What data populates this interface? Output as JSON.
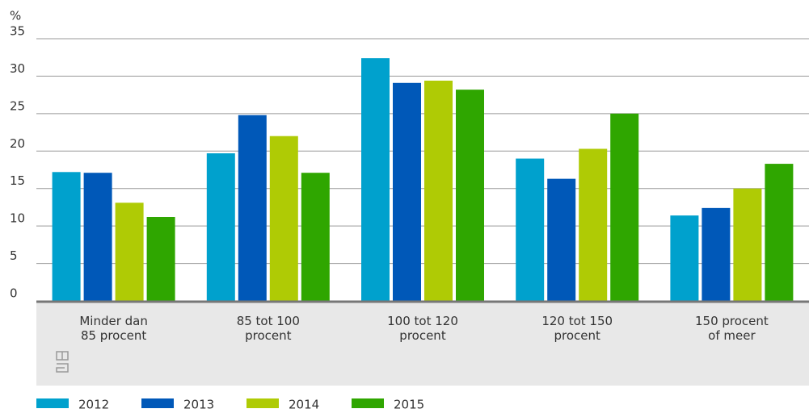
{
  "chart_data": {
    "type": "bar",
    "y_label": "%",
    "categories": [
      "Minder dan\n85 procent",
      "85 tot 100\nprocent",
      "100 tot 120\nprocent",
      "120 tot 150\nprocent",
      "150 procent\nof meer"
    ],
    "series": [
      {
        "name": "2012",
        "color": "#00a1cd",
        "values": [
          17.2,
          19.7,
          32.4,
          19.0,
          11.4
        ]
      },
      {
        "name": "2013",
        "color": "#0058b8",
        "values": [
          17.1,
          24.8,
          29.1,
          16.3,
          12.4
        ]
      },
      {
        "name": "2014",
        "color": "#afcb05",
        "values": [
          13.1,
          22.0,
          29.4,
          20.3,
          15.0
        ]
      },
      {
        "name": "2015",
        "color": "#2fa600",
        "values": [
          11.2,
          17.1,
          28.2,
          25.0,
          18.3
        ]
      }
    ],
    "ylim": [
      0,
      35
    ],
    "yticks": [
      0,
      5,
      10,
      15,
      20,
      25,
      30,
      35
    ],
    "grid": true
  }
}
